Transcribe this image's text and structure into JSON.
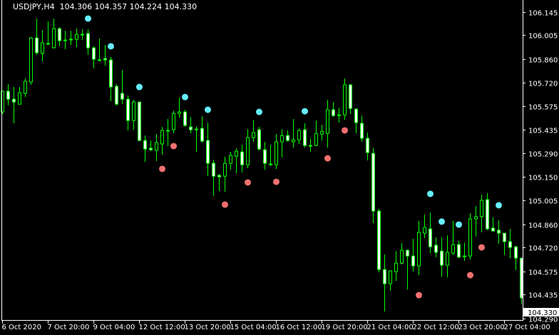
{
  "header": {
    "symbol": "USDJPY,H4",
    "ohlc": "104.306 104.357 104.224 104.330"
  },
  "colors": {
    "background": "#000000",
    "candle_outline": "#00ff00",
    "bear_fill": "#ffffff",
    "bull_fill": "#000000",
    "signal_up": "#66eeff",
    "signal_down": "#f07070",
    "axis": "#ffffff"
  },
  "chart_data": {
    "type": "candlestick",
    "title": "USDJPY,H4",
    "ylim": [
      104.29,
      106.145
    ],
    "grid": false,
    "y_ticks": [
      "106.145",
      "106.005",
      "105.860",
      "105.720",
      "105.575",
      "105.435",
      "105.290",
      "105.150",
      "105.005",
      "104.860",
      "104.720",
      "104.575",
      "104.435",
      "104.290"
    ],
    "y_tick_values": [
      106.145,
      106.005,
      105.86,
      105.72,
      105.575,
      105.435,
      105.29,
      105.15,
      105.005,
      104.86,
      104.72,
      104.575,
      104.435,
      104.29
    ],
    "current_price": "104.330",
    "x_tick_labels": [
      "6 Oct 2020",
      "7 Oct 20:00",
      "9 Oct 04:00",
      "12 Oct 12:00",
      "13 Oct 20:00",
      "15 Oct 04:00",
      "16 Oct 12:00",
      "19 Oct 20:00",
      "21 Oct 04:00",
      "22 Oct 12:00",
      "23 Oct 20:00",
      "27 Oct 04:00"
    ],
    "x_tick_every_bars": 8,
    "ohlc": [
      [
        105.541,
        105.67,
        105.528,
        105.666
      ],
      [
        105.666,
        105.709,
        105.58,
        105.618
      ],
      [
        105.618,
        105.692,
        105.472,
        105.601
      ],
      [
        105.588,
        105.692,
        105.584,
        105.657
      ],
      [
        105.653,
        105.743,
        105.631,
        105.726
      ],
      [
        105.722,
        105.994,
        105.705,
        105.989
      ],
      [
        105.989,
        106.106,
        105.886,
        105.899
      ],
      [
        105.894,
        106.037,
        105.847,
        105.959
      ],
      [
        105.955,
        106.089,
        105.946,
        105.955
      ],
      [
        105.929,
        106.106,
        105.925,
        106.045
      ],
      [
        106.045,
        106.054,
        105.938,
        105.972
      ],
      [
        105.976,
        106.032,
        105.92,
        105.976
      ],
      [
        105.981,
        106.032,
        105.946,
        105.981
      ],
      [
        105.981,
        106.045,
        105.933,
        106.011
      ],
      [
        106.011,
        106.041,
        105.976,
        106.011
      ],
      [
        106.015,
        106.041,
        105.886,
        105.929
      ],
      [
        105.929,
        105.938,
        105.804,
        105.86
      ],
      [
        105.856,
        105.985,
        105.847,
        105.856
      ],
      [
        105.864,
        105.946,
        105.821,
        105.856
      ],
      [
        105.856,
        105.873,
        105.605,
        105.692
      ],
      [
        105.696,
        105.709,
        105.58,
        105.588
      ],
      [
        105.653,
        105.795,
        105.588,
        105.618
      ],
      [
        105.618,
        105.64,
        105.429,
        105.489
      ],
      [
        105.489,
        105.614,
        105.433,
        105.601
      ],
      [
        105.601,
        105.601,
        105.364,
        105.368
      ],
      [
        105.368,
        105.398,
        105.239,
        105.316
      ],
      [
        105.321,
        105.368,
        105.303,
        105.312
      ],
      [
        105.308,
        105.407,
        105.243,
        105.355
      ],
      [
        105.347,
        105.45,
        105.282,
        105.429
      ],
      [
        105.429,
        105.498,
        105.334,
        105.429
      ],
      [
        105.433,
        105.549,
        105.411,
        105.532
      ],
      [
        105.532,
        105.627,
        105.506,
        105.541
      ],
      [
        105.541,
        105.554,
        105.45,
        105.459
      ],
      [
        105.45,
        105.51,
        105.411,
        105.433
      ],
      [
        105.437,
        105.454,
        105.299,
        105.437
      ],
      [
        105.441,
        105.515,
        105.355,
        105.364
      ],
      [
        105.368,
        105.476,
        105.152,
        105.23
      ],
      [
        105.23,
        105.252,
        105.032,
        105.152
      ],
      [
        105.157,
        105.165,
        105.062,
        105.148
      ],
      [
        105.152,
        105.269,
        105.058,
        105.23
      ],
      [
        105.23,
        105.299,
        105.191,
        105.278
      ],
      [
        105.273,
        105.321,
        105.17,
        105.303
      ],
      [
        105.299,
        105.342,
        105.174,
        105.221
      ],
      [
        105.221,
        105.437,
        105.2,
        105.385
      ],
      [
        105.385,
        105.493,
        105.36,
        105.416
      ],
      [
        105.433,
        105.45,
        105.308,
        105.316
      ],
      [
        105.312,
        105.36,
        105.191,
        105.23
      ],
      [
        105.226,
        105.342,
        105.213,
        105.226
      ],
      [
        105.221,
        105.407,
        105.196,
        105.36
      ],
      [
        105.36,
        105.437,
        105.265,
        105.398
      ],
      [
        105.398,
        105.429,
        105.36,
        105.368
      ],
      [
        105.36,
        105.498,
        105.325,
        105.372
      ],
      [
        105.372,
        105.441,
        105.347,
        105.429
      ],
      [
        105.433,
        105.472,
        105.325,
        105.338
      ],
      [
        105.338,
        105.381,
        105.299,
        105.338
      ],
      [
        105.338,
        105.489,
        105.334,
        105.411
      ],
      [
        105.407,
        105.463,
        105.368,
        105.424
      ],
      [
        105.411,
        105.614,
        105.325,
        105.554
      ],
      [
        105.554,
        105.601,
        105.51,
        105.519
      ],
      [
        105.523,
        105.567,
        105.476,
        105.523
      ],
      [
        105.523,
        105.743,
        105.493,
        105.705
      ],
      [
        105.705,
        105.709,
        105.528,
        105.562
      ],
      [
        105.558,
        105.562,
        105.411,
        105.476
      ],
      [
        105.472,
        105.519,
        105.36,
        105.381
      ],
      [
        105.381,
        105.416,
        105.247,
        105.295
      ],
      [
        105.29,
        105.325,
        104.868,
        104.941
      ],
      [
        104.941,
        104.954,
        104.57,
        104.587
      ],
      [
        104.587,
        104.678,
        104.333,
        104.501
      ],
      [
        104.501,
        104.583,
        104.458,
        104.579
      ],
      [
        104.574,
        104.699,
        104.518,
        104.626
      ],
      [
        104.626,
        104.747,
        104.618,
        104.704
      ],
      [
        104.704,
        104.708,
        104.466,
        104.669
      ],
      [
        104.669,
        104.773,
        104.574,
        104.609
      ],
      [
        104.609,
        104.881,
        104.553,
        104.812
      ],
      [
        104.807,
        104.919,
        104.777,
        104.842
      ],
      [
        104.833,
        104.932,
        104.687,
        104.725
      ],
      [
        104.734,
        104.781,
        104.661,
        104.691
      ],
      [
        104.699,
        104.781,
        104.544,
        104.613
      ],
      [
        104.613,
        104.794,
        104.54,
        104.691
      ],
      [
        104.687,
        104.881,
        104.674,
        104.738
      ],
      [
        104.738,
        104.76,
        104.661,
        104.661
      ],
      [
        104.669,
        104.751,
        104.639,
        104.669
      ],
      [
        104.669,
        104.928,
        104.648,
        104.894
      ],
      [
        104.894,
        104.971,
        104.786,
        104.907
      ],
      [
        104.907,
        105.04,
        104.812,
        105.006
      ],
      [
        105.01,
        105.049,
        104.825,
        104.833
      ],
      [
        104.838,
        104.902,
        104.82,
        104.82
      ],
      [
        104.825,
        104.885,
        104.743,
        104.807
      ],
      [
        104.807,
        104.807,
        104.674,
        104.756
      ],
      [
        104.756,
        104.833,
        104.656,
        104.721
      ],
      [
        104.725,
        104.73,
        104.583,
        104.656
      ],
      [
        104.656,
        104.656,
        104.38,
        104.415
      ]
    ],
    "signals_up": [
      {
        "bar": 15,
        "price": 106.106
      },
      {
        "bar": 19,
        "price": 105.938
      },
      {
        "bar": 24,
        "price": 105.692
      },
      {
        "bar": 32,
        "price": 105.631
      },
      {
        "bar": 36,
        "price": 105.554
      },
      {
        "bar": 45,
        "price": 105.541
      },
      {
        "bar": 53,
        "price": 105.545
      },
      {
        "bar": 75,
        "price": 105.045
      },
      {
        "bar": 77,
        "price": 104.877
      },
      {
        "bar": 80,
        "price": 104.859
      },
      {
        "bar": 87,
        "price": 104.976
      }
    ],
    "signals_down": [
      {
        "bar": 28,
        "price": 105.196
      },
      {
        "bar": 30,
        "price": 105.334
      },
      {
        "bar": 39,
        "price": 104.98
      },
      {
        "bar": 43,
        "price": 105.114
      },
      {
        "bar": 48,
        "price": 105.118
      },
      {
        "bar": 57,
        "price": 105.26
      },
      {
        "bar": 60,
        "price": 105.429
      },
      {
        "bar": 73,
        "price": 104.432
      },
      {
        "bar": 82,
        "price": 104.553
      },
      {
        "bar": 84,
        "price": 104.721
      }
    ]
  }
}
